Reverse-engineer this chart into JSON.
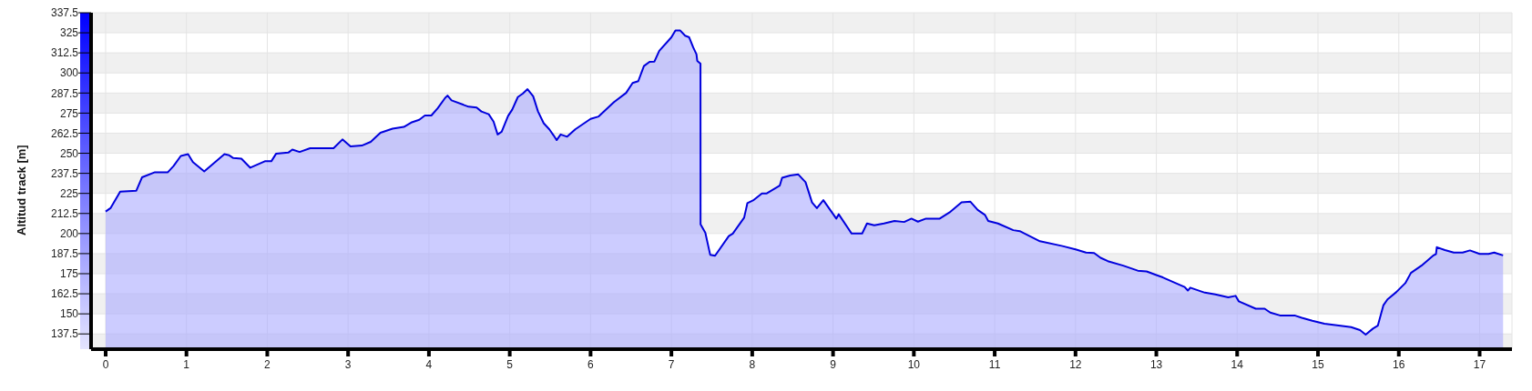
{
  "chart_data": {
    "type": "area",
    "ylabel": "Altitud track [m]",
    "xlim": [
      -0.18,
      17.4
    ],
    "xticks": [
      0,
      1,
      2,
      3,
      4,
      5,
      6,
      7,
      8,
      9,
      10,
      11,
      12,
      13,
      14,
      15,
      16,
      17
    ],
    "ylim": [
      128,
      337.5
    ],
    "yticks": [
      137.5,
      150,
      162.5,
      175,
      187.5,
      200,
      212.5,
      225,
      237.5,
      250,
      262.5,
      275,
      287.5,
      300,
      312.5,
      325,
      337.5
    ],
    "grid": true,
    "legend": false,
    "marker": "none",
    "line_style": "solid",
    "series": [
      {
        "color": "#0000dd",
        "x": [
          0,
          0.06,
          0.18,
          0.38,
          0.45,
          0.61,
          0.77,
          0.84,
          0.93,
          1.02,
          1.08,
          1.22,
          1.47,
          1.53,
          1.58,
          1.68,
          1.79,
          1.97,
          2.05,
          2.11,
          2.26,
          2.31,
          2.4,
          2.53,
          2.82,
          2.93,
          3.03,
          3.17,
          3.28,
          3.4,
          3.55,
          3.69,
          3.78,
          3.88,
          3.95,
          4.03,
          4.11,
          4.2,
          4.23,
          4.28,
          4.49,
          4.59,
          4.65,
          4.74,
          4.8,
          4.85,
          4.9,
          4.98,
          5.03,
          5.1,
          5.16,
          5.22,
          5.29,
          5.35,
          5.42,
          5.49,
          5.54,
          5.58,
          5.63,
          5.71,
          5.81,
          6,
          6.1,
          6.29,
          6.44,
          6.52,
          6.59,
          6.66,
          6.73,
          6.79,
          6.85,
          7,
          7.05,
          7.11,
          7.17,
          7.22,
          7.27,
          7.31,
          7.32,
          7.36,
          7.361,
          7.42,
          7.48,
          7.54,
          7.71,
          7.76,
          7.9,
          7.94,
          8.01,
          8.12,
          8.18,
          8.34,
          8.37,
          8.47,
          8.57,
          8.66,
          8.74,
          8.8,
          8.88,
          9.04,
          9.07,
          9.23,
          9.36,
          9.42,
          9.51,
          9.63,
          9.76,
          9.88,
          9.97,
          10.05,
          10.15,
          10.32,
          10.44,
          10.59,
          10.7,
          10.79,
          10.88,
          10.92,
          11.04,
          11.23,
          11.31,
          11.56,
          11.84,
          12,
          12.13,
          12.23,
          12.31,
          12.4,
          12.59,
          12.77,
          12.88,
          13.08,
          13.24,
          13.35,
          13.39,
          13.42,
          13.6,
          13.73,
          13.89,
          13.98,
          14.02,
          14.23,
          14.34,
          14.41,
          14.53,
          14.71,
          14.8,
          14.93,
          15.08,
          15.28,
          15.41,
          15.52,
          15.59,
          15.68,
          15.74,
          15.81,
          15.86,
          15.97,
          16.08,
          16.15,
          16.28,
          16.43,
          16.46,
          16.47,
          16.57,
          16.68,
          16.79,
          16.88,
          17,
          17.11,
          17.18,
          17.29
        ],
        "values": [
          213.7,
          215.8,
          226.1,
          226.7,
          235,
          238.2,
          238.2,
          242,
          248.3,
          249.4,
          244.5,
          238.7,
          249.4,
          248.7,
          247,
          246.6,
          241,
          245,
          245,
          249.8,
          250.4,
          252.3,
          250.8,
          253.1,
          253.1,
          258.6,
          254.2,
          254.8,
          257.1,
          262.8,
          265.3,
          266.4,
          269.1,
          270.8,
          273.5,
          273.5,
          278.1,
          284.4,
          285.9,
          282.9,
          279,
          278.5,
          276,
          274.3,
          269.7,
          261.7,
          263.4,
          273.3,
          277.1,
          285,
          287.1,
          289.9,
          285.5,
          276,
          268.7,
          264.9,
          261.3,
          258.2,
          261.7,
          260.3,
          264.9,
          271.4,
          272.9,
          281.9,
          287.6,
          293.8,
          294.9,
          304.3,
          306.9,
          307.1,
          313.8,
          322.2,
          326.4,
          326.4,
          323.2,
          322.2,
          315.9,
          311.7,
          307.5,
          305.8,
          205.7,
          200.5,
          186.8,
          186.2,
          198.4,
          200,
          209.9,
          218.9,
          220.6,
          225,
          225,
          229.8,
          234.7,
          236.1,
          236.8,
          232,
          219.4,
          215.8,
          220.8,
          209.3,
          212,
          200,
          200,
          206.3,
          205.1,
          206.3,
          207.8,
          207.2,
          209.3,
          207.4,
          209.3,
          209.3,
          213.1,
          219.4,
          219.8,
          214.7,
          211.6,
          207.8,
          206.3,
          202.1,
          201.5,
          195.2,
          192.2,
          190.1,
          188.2,
          187.9,
          184.9,
          182.8,
          180,
          176.9,
          176.4,
          172.7,
          169.1,
          166.7,
          164.5,
          166.3,
          163.2,
          162.1,
          160.3,
          161.2,
          157.8,
          153.2,
          153.2,
          150.8,
          149,
          149,
          147.5,
          145.7,
          143.9,
          142.6,
          141.7,
          139.9,
          137.1,
          140.8,
          142.6,
          155.4,
          159,
          163.6,
          169.1,
          175.5,
          180,
          186.4,
          187.3,
          191.5,
          189.7,
          188.2,
          188.2,
          189.5,
          187.3,
          187.3,
          188.2,
          186.4
        ]
      }
    ]
  }
}
